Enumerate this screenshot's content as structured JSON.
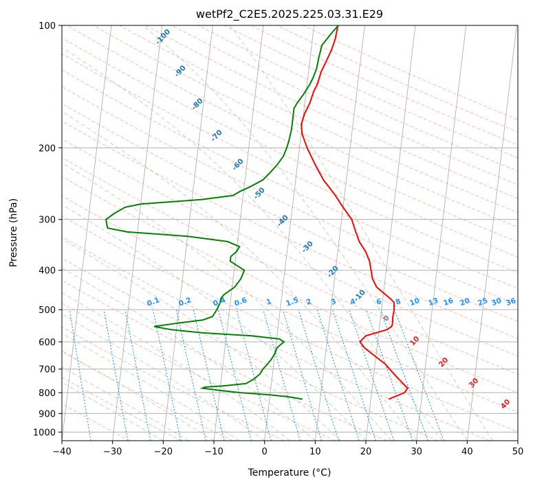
{
  "chart_data": {
    "type": "line",
    "title": "wetPf2_C2E5.2025.225.03.31.E29",
    "xlabel": "Temperature (°C)",
    "ylabel": "Pressure (hPa)",
    "xlim": [
      -40,
      50
    ],
    "ylim": [
      1050,
      100
    ],
    "y_scale": "log",
    "grid": true,
    "x_ticks": [
      "−40",
      "−30",
      "−20",
      "−10",
      "0",
      "10",
      "20",
      "30",
      "40",
      "50"
    ],
    "y_ticks": [
      "100",
      "200",
      "300",
      "400",
      "500",
      "600",
      "700",
      "800",
      "900",
      "1000"
    ],
    "isotherm_labels": [
      "-100",
      "-90",
      "-80",
      "-70",
      "-60",
      "-50",
      "-40",
      "-30",
      "-20",
      "-10",
      "0",
      "10",
      "20",
      "30",
      "40"
    ],
    "mixing_ratio_labels": [
      "0.1",
      "0.2",
      "0.4",
      "0.6",
      "1",
      "1.5",
      "2",
      "3",
      "4",
      "6",
      "8",
      "10",
      "13",
      "16",
      "20",
      "25",
      "30",
      "36"
    ],
    "colors": {
      "temperature": "#ff0000",
      "dewpoint": "#008000",
      "isotherm_labels": "#1f77b4",
      "warm_isotherm_labels": "#d62728",
      "zero_isotherm_label": "#808080",
      "mixing_ratio": "#1e90ff",
      "dry_adiabat": "#fa8072",
      "moist_adiabat": "#90c090",
      "isobar_grid": "#b0b0b0"
    },
    "series": [
      {
        "points": [
          [
            23.5,
            830
          ],
          [
            24.5,
            820
          ],
          [
            26.5,
            800
          ],
          [
            27,
            780
          ],
          [
            26,
            760
          ],
          [
            25,
            740
          ],
          [
            24,
            720
          ],
          [
            23,
            700
          ],
          [
            22,
            680
          ],
          [
            20.5,
            660
          ],
          [
            19,
            640
          ],
          [
            17.5,
            620
          ],
          [
            16.5,
            600
          ],
          [
            17,
            590
          ],
          [
            17.5,
            580
          ],
          [
            19.5,
            570
          ],
          [
            21.5,
            560
          ],
          [
            22.4,
            550
          ],
          [
            22.5,
            540
          ],
          [
            22.4,
            520
          ],
          [
            22.5,
            500
          ],
          [
            22.3,
            480
          ],
          [
            21.5,
            470
          ],
          [
            20.5,
            460
          ],
          [
            19.5,
            450
          ],
          [
            18.5,
            440
          ],
          [
            17.5,
            420
          ],
          [
            17,
            400
          ],
          [
            16.5,
            380
          ],
          [
            15.5,
            360
          ],
          [
            14,
            340
          ],
          [
            13,
            320
          ],
          [
            12,
            300
          ],
          [
            10,
            280
          ],
          [
            8,
            260
          ],
          [
            5.5,
            240
          ],
          [
            3.5,
            220
          ],
          [
            1.5,
            200
          ],
          [
            0.2,
            185
          ],
          [
            -0.2,
            175
          ],
          [
            0.2,
            165
          ],
          [
            1,
            155
          ],
          [
            1.5,
            145
          ],
          [
            2,
            140
          ],
          [
            2.5,
            130
          ],
          [
            3,
            125
          ],
          [
            4,
            115
          ],
          [
            4.5,
            108
          ],
          [
            4.7,
            100
          ]
        ]
      },
      {
        "points": [
          [
            6.5,
            830
          ],
          [
            4,
            820
          ],
          [
            0,
            810
          ],
          [
            -6,
            800
          ],
          [
            -10,
            790
          ],
          [
            -13.5,
            780
          ],
          [
            -13,
            775
          ],
          [
            -9.5,
            770
          ],
          [
            -5,
            760
          ],
          [
            -3.5,
            740
          ],
          [
            -2.5,
            720
          ],
          [
            -2,
            700
          ],
          [
            -1.2,
            680
          ],
          [
            -0.5,
            660
          ],
          [
            0,
            640
          ],
          [
            0.3,
            620
          ],
          [
            1.5,
            600
          ],
          [
            0.5,
            590
          ],
          [
            -5,
            580
          ],
          [
            -15,
            570
          ],
          [
            -21,
            560
          ],
          [
            -24.5,
            550
          ],
          [
            -20,
            540
          ],
          [
            -15,
            530
          ],
          [
            -13.2,
            520
          ],
          [
            -12.5,
            500
          ],
          [
            -12,
            480
          ],
          [
            -12,
            470
          ],
          [
            -11.5,
            460
          ],
          [
            -9.5,
            440
          ],
          [
            -8.5,
            420
          ],
          [
            -8,
            400
          ],
          [
            -9.5,
            390
          ],
          [
            -11,
            380
          ],
          [
            -11,
            370
          ],
          [
            -10,
            360
          ],
          [
            -9.5,
            350
          ],
          [
            -12,
            340
          ],
          [
            -20,
            330
          ],
          [
            -32,
            322
          ],
          [
            -36,
            315
          ],
          [
            -36.5,
            300
          ],
          [
            -35,
            290
          ],
          [
            -33,
            280
          ],
          [
            -30,
            275
          ],
          [
            -18,
            268
          ],
          [
            -12,
            262
          ],
          [
            -10.5,
            255
          ],
          [
            -9,
            250
          ],
          [
            -6.5,
            240
          ],
          [
            -5.2,
            230
          ],
          [
            -4,
            220
          ],
          [
            -3,
            210
          ],
          [
            -2.5,
            200
          ],
          [
            -2.2,
            190
          ],
          [
            -2,
            180
          ],
          [
            -2,
            170
          ],
          [
            -2,
            165
          ],
          [
            -2,
            160
          ],
          [
            -1.5,
            155
          ],
          [
            -0.5,
            148
          ],
          [
            0.5,
            140
          ],
          [
            1,
            135
          ],
          [
            1.5,
            128
          ],
          [
            1.7,
            120
          ],
          [
            2,
            112
          ],
          [
            3.5,
            105
          ],
          [
            4.8,
            100
          ]
        ]
      }
    ]
  }
}
